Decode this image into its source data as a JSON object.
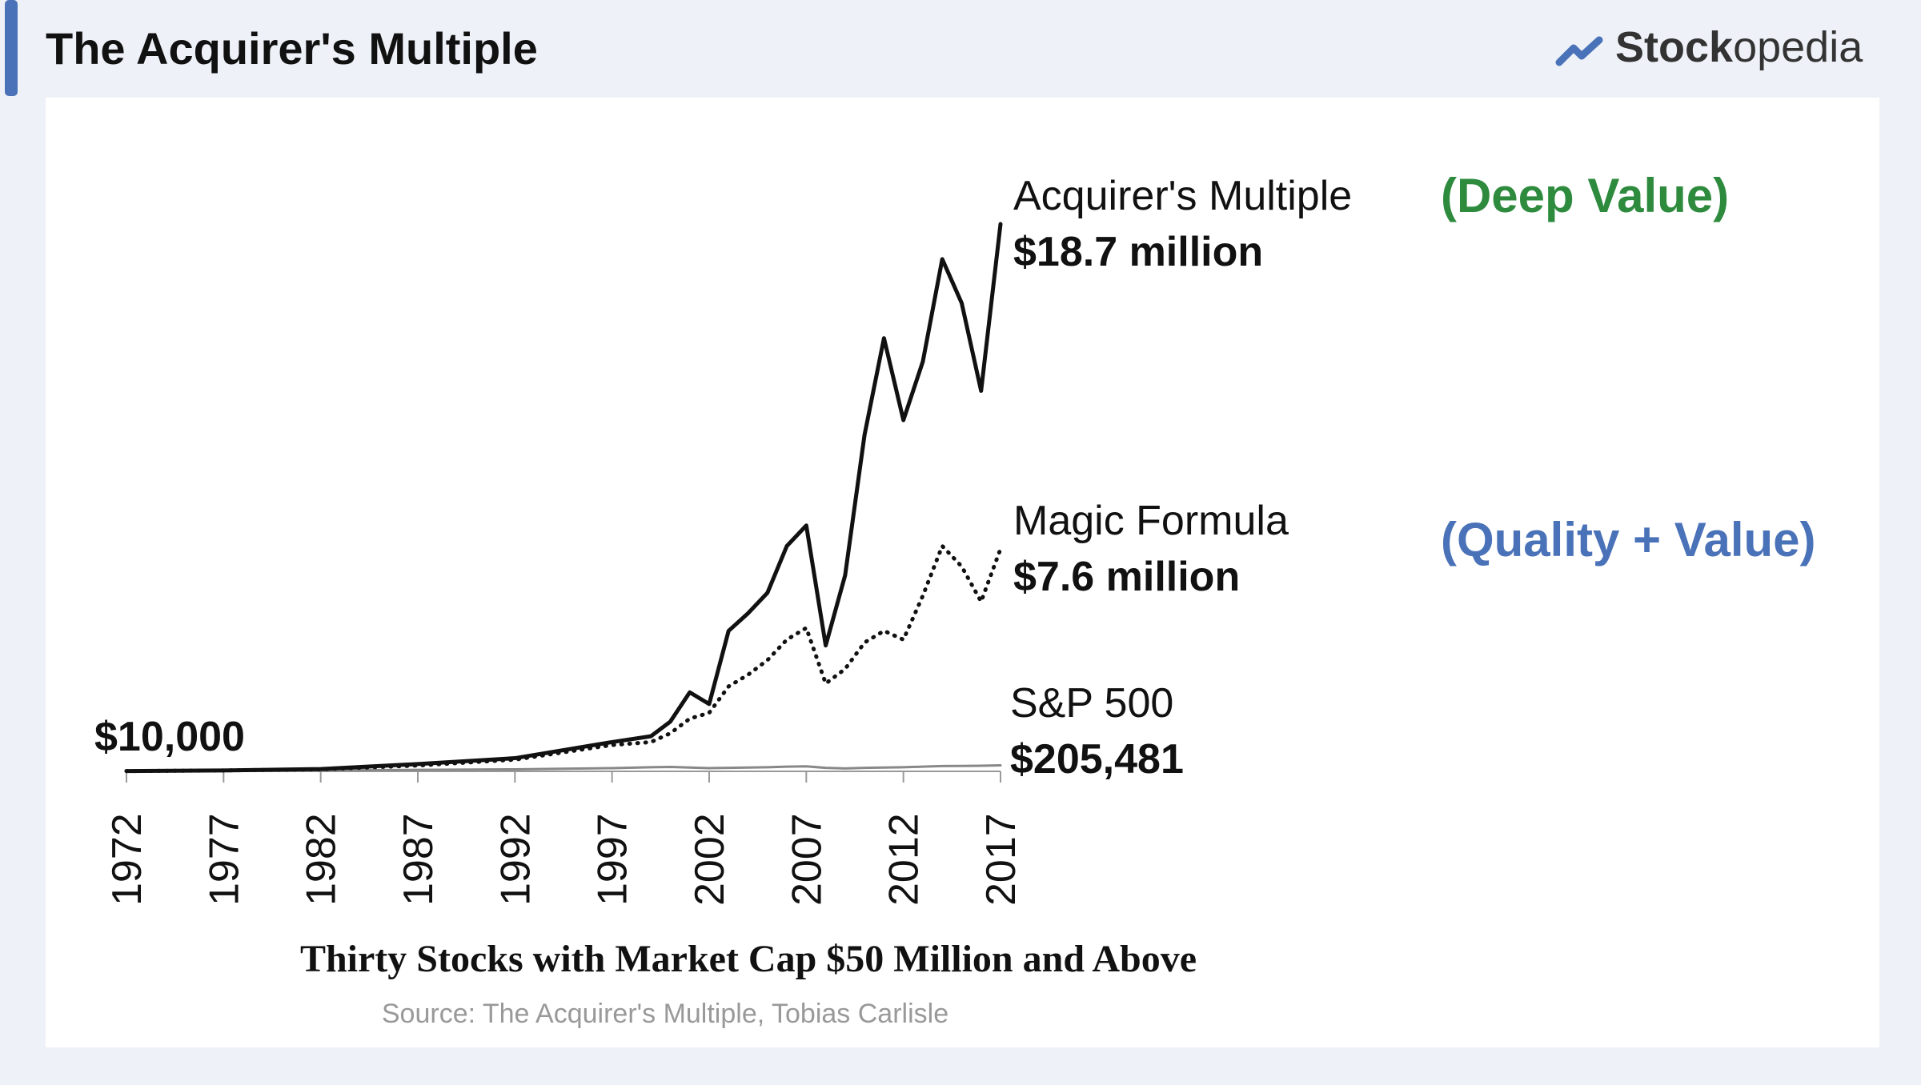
{
  "header": {
    "title": "The Acquirer's Multiple",
    "brand": {
      "bold": "Stock",
      "light": "opedia"
    }
  },
  "chart_data": {
    "type": "line",
    "title": "Thirty Stocks with Market Cap $50 Million and Above",
    "source": "Source: The Acquirer's Multiple, Tobias Carlisle",
    "start_label": "$10,000",
    "annotations": [
      {
        "text": "(Deep Value)",
        "color": "#2e8b3e"
      },
      {
        "text": "(Quality + Value)",
        "color": "#4a72b8"
      }
    ],
    "x": [
      1972,
      1977,
      1982,
      1987,
      1992,
      1997,
      1999,
      2000,
      2001,
      2002,
      2003,
      2004,
      2005,
      2006,
      2007,
      2008,
      2009,
      2010,
      2011,
      2012,
      2013,
      2014,
      2015,
      2016,
      2017
    ],
    "xlim": [
      1972,
      2017
    ],
    "xticks": [
      1972,
      1977,
      1982,
      1987,
      1992,
      1997,
      2002,
      2007,
      2012,
      2017
    ],
    "series": [
      {
        "name": "Acquirer's Multiple",
        "color": "#111111",
        "dash": "solid",
        "end_label": "$18.7 million",
        "values": [
          10000,
          30000,
          80000,
          250000,
          450000,
          1000000,
          1200000,
          1700000,
          2700000,
          2300000,
          4800000,
          5400000,
          6100000,
          7700000,
          8400000,
          4300000,
          6700000,
          11500000,
          14800000,
          12000000,
          14000000,
          17500000,
          16000000,
          13000000,
          18700000
        ]
      },
      {
        "name": "Magic Formula",
        "color": "#111111",
        "dash": "dotted",
        "end_label": "$7.6 million",
        "values": [
          10000,
          30000,
          70000,
          200000,
          400000,
          900000,
          1000000,
          1300000,
          1800000,
          2000000,
          2900000,
          3300000,
          3800000,
          4500000,
          4900000,
          3000000,
          3500000,
          4400000,
          4800000,
          4500000,
          6000000,
          7700000,
          7000000,
          5800000,
          7600000
        ]
      },
      {
        "name": "S&P 500",
        "color": "#888888",
        "dash": "solid",
        "end_label": "$205,481",
        "values": [
          10000,
          15000,
          30000,
          50000,
          70000,
          110000,
          140000,
          150000,
          130000,
          110000,
          120000,
          130000,
          140000,
          160000,
          170000,
          120000,
          100000,
          120000,
          130000,
          140000,
          160000,
          180000,
          185000,
          190000,
          205481
        ]
      }
    ]
  }
}
